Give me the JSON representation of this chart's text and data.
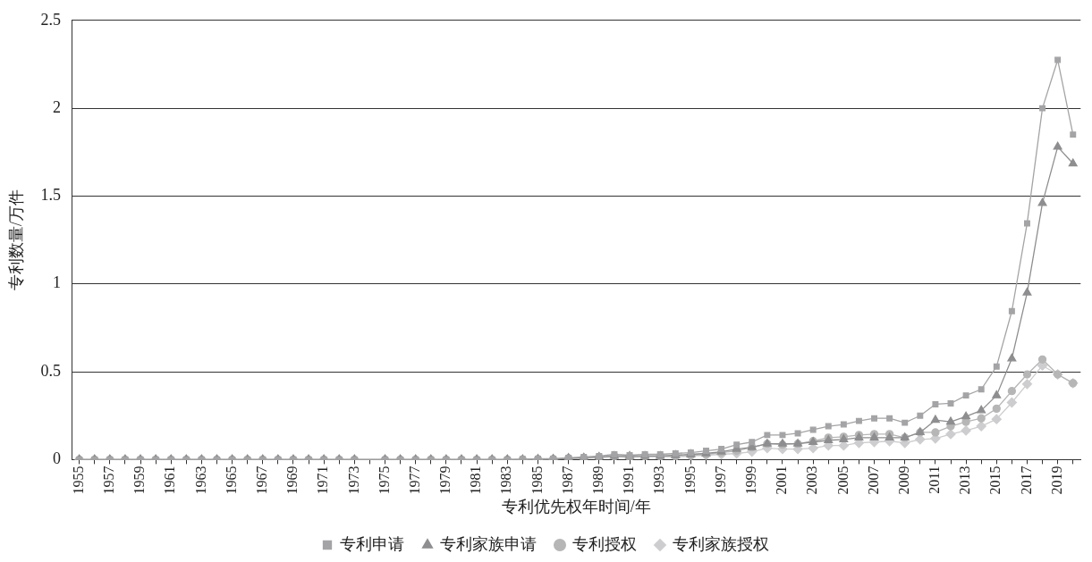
{
  "chart_data": {
    "type": "line",
    "xlabel": "专利优先权年时间/年",
    "ylabel": "专利数量/万件",
    "categories": [
      "1955",
      null,
      "1957",
      null,
      "1959",
      null,
      "1961",
      null,
      "1963",
      null,
      "1965",
      null,
      "1967",
      null,
      "1969",
      null,
      "1971",
      null,
      "1973",
      null,
      "1975",
      null,
      "1977",
      null,
      "1979",
      null,
      "1981",
      null,
      "1983",
      null,
      "1985",
      null,
      "1987",
      null,
      "1989",
      null,
      "1991",
      null,
      "1993",
      null,
      "1995",
      null,
      "1997",
      null,
      "1999",
      null,
      "2001",
      null,
      "2003",
      null,
      "2005",
      null,
      "2007",
      null,
      "2009",
      null,
      "2011",
      null,
      "2013",
      null,
      "2015",
      null,
      "2017",
      null,
      "2019",
      null
    ],
    "series": [
      {
        "name": "专利申请",
        "color": "#a4a4a6",
        "marker": "square",
        "values": [
          0,
          0,
          0,
          0,
          0,
          0,
          0,
          0,
          0,
          0,
          0,
          0,
          0,
          0,
          0,
          0,
          0,
          0,
          0,
          null,
          0,
          0,
          0,
          0,
          0,
          0,
          0,
          0,
          0,
          0.003,
          0.005,
          0.005,
          0.01,
          0.015,
          0.02,
          0.03,
          0.025,
          0.03,
          0.03,
          0.035,
          0.04,
          0.05,
          0.06,
          0.085,
          0.1,
          0.14,
          0.14,
          0.15,
          0.17,
          0.19,
          0.2,
          0.22,
          0.235,
          0.235,
          0.21,
          0.25,
          0.315,
          0.32,
          0.365,
          0.4,
          0.53,
          0.845,
          1.345,
          2.0,
          2.275,
          1.85
        ]
      },
      {
        "name": "专利家族申请",
        "color": "#8e8e90",
        "marker": "triangle",
        "values": [
          0,
          0,
          0,
          0,
          0,
          0,
          0,
          0,
          0,
          0,
          0,
          0,
          0,
          0,
          0,
          0,
          0,
          0,
          0,
          null,
          0,
          0,
          0,
          0,
          0,
          0,
          0,
          0,
          0,
          0,
          0.003,
          0.003,
          0.008,
          0.01,
          0.015,
          0.02,
          0.02,
          0.02,
          0.02,
          0.025,
          0.03,
          0.035,
          0.045,
          0.06,
          0.07,
          0.09,
          0.09,
          0.09,
          0.1,
          0.11,
          0.115,
          0.125,
          0.125,
          0.125,
          0.125,
          0.155,
          0.225,
          0.215,
          0.245,
          0.28,
          0.365,
          0.575,
          0.95,
          1.46,
          1.78,
          1.685
        ]
      },
      {
        "name": "专利授权",
        "color": "#b6b6b6",
        "marker": "circle",
        "values": [
          0,
          0,
          0,
          0,
          0,
          0,
          0,
          0,
          0,
          0,
          0,
          0,
          0,
          0,
          0,
          0,
          0,
          0,
          0,
          null,
          0,
          0,
          0,
          0,
          0,
          0,
          0,
          0,
          0,
          0,
          0.003,
          0.003,
          0.008,
          0.01,
          0.015,
          0.02,
          0.015,
          0.02,
          0.02,
          0.02,
          0.025,
          0.03,
          0.04,
          0.05,
          0.07,
          0.09,
          0.085,
          0.09,
          0.105,
          0.125,
          0.13,
          0.14,
          0.145,
          0.145,
          0.125,
          0.155,
          0.155,
          0.19,
          0.215,
          0.235,
          0.29,
          0.39,
          0.485,
          0.57,
          0.485,
          0.435
        ]
      },
      {
        "name": "专利家族授权",
        "color": "#cdcdcf",
        "marker": "diamond",
        "values": [
          0,
          0,
          0,
          0,
          0,
          0,
          0,
          0,
          0,
          0,
          0,
          0,
          0,
          0,
          0,
          0,
          0,
          0,
          0,
          null,
          0,
          0,
          0,
          0,
          0,
          0,
          0,
          0,
          0,
          0,
          0,
          0.003,
          0.005,
          0.008,
          0.01,
          0.015,
          0.01,
          0.015,
          0.015,
          0.015,
          0.02,
          0.025,
          0.03,
          0.035,
          0.045,
          0.065,
          0.06,
          0.06,
          0.065,
          0.08,
          0.08,
          0.095,
          0.1,
          0.105,
          0.095,
          0.115,
          0.12,
          0.145,
          0.165,
          0.19,
          0.23,
          0.325,
          0.43,
          0.535,
          0.485,
          0.435
        ]
      }
    ],
    "ylim": [
      0,
      2.5
    ],
    "yticks": [
      0,
      0.5,
      1,
      1.5,
      2,
      2.5
    ],
    "grid": "y",
    "legend": "bottom",
    "line_style": "solid"
  }
}
